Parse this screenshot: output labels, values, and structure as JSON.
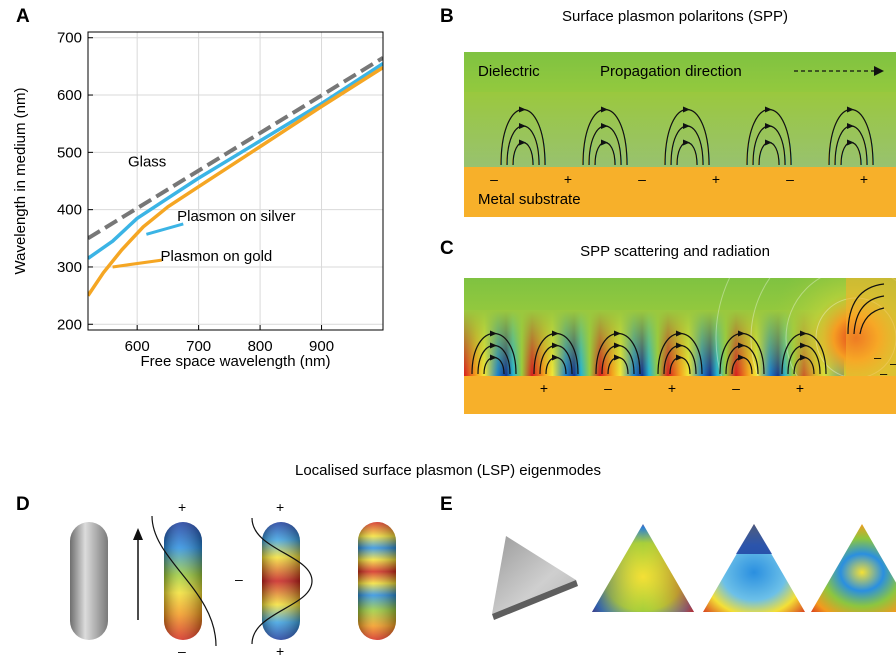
{
  "panels": {
    "a": {
      "letter": "A"
    },
    "b": {
      "letter": "B",
      "title": "Surface plasmon polaritons (SPP)",
      "dielectric_label": "Dielectric",
      "propagation_label": "Propagation direction",
      "substrate_label": "Metal substrate",
      "charges": [
        "–",
        "+",
        "–",
        "+",
        "–",
        "+"
      ]
    },
    "c": {
      "letter": "C",
      "title": "SPP scattering and radiation",
      "charges": [
        "+",
        "–",
        "+",
        "–",
        "+"
      ]
    },
    "lsp_title": "Localised surface plasmon (LSP) eigenmodes",
    "d": {
      "letter": "D",
      "plus": "+",
      "minus": "–"
    },
    "e": {
      "letter": "E"
    }
  },
  "colors": {
    "silver": "#3BB4E5",
    "gold": "#F5A623",
    "glass": "#777777",
    "metal": "#F7B02A",
    "field_green": "#8CC63F"
  },
  "chart_data": {
    "type": "line",
    "xlabel": "Free space wavelength (nm)",
    "ylabel": "Wavelength in medium (nm)",
    "xlim": [
      520,
      1000
    ],
    "ylim": [
      190,
      710
    ],
    "xticks": [
      600,
      700,
      800,
      900
    ],
    "yticks": [
      200,
      300,
      400,
      500,
      600,
      700
    ],
    "grid": true,
    "series": [
      {
        "name": "Glass",
        "style": "dashed",
        "color": "#777777",
        "x": [
          520,
          1000
        ],
        "y": [
          350,
          665
        ]
      },
      {
        "name": "Plasmon on silver",
        "color": "#3BB4E5",
        "x": [
          520,
          560,
          600,
          650,
          700,
          800,
          900,
          1000
        ],
        "y": [
          315,
          345,
          385,
          420,
          455,
          520,
          585,
          655
        ]
      },
      {
        "name": "Plasmon on gold",
        "color": "#F5A623",
        "x": [
          520,
          545,
          575,
          610,
          650,
          700,
          800,
          900,
          1000
        ],
        "y": [
          250,
          290,
          330,
          370,
          405,
          440,
          510,
          580,
          648
        ]
      }
    ],
    "annotations": [
      {
        "text": "Glass",
        "x": 585,
        "y": 475,
        "for": "Glass"
      },
      {
        "text": "Plasmon on silver",
        "x": 665,
        "y": 380,
        "for": "Plasmon on silver",
        "leader": [
          [
            615,
            357
          ],
          [
            675,
            375
          ]
        ]
      },
      {
        "text": "Plasmon on gold",
        "x": 638,
        "y": 310,
        "for": "Plasmon on gold",
        "leader": [
          [
            560,
            300
          ],
          [
            640,
            312
          ]
        ]
      }
    ]
  }
}
